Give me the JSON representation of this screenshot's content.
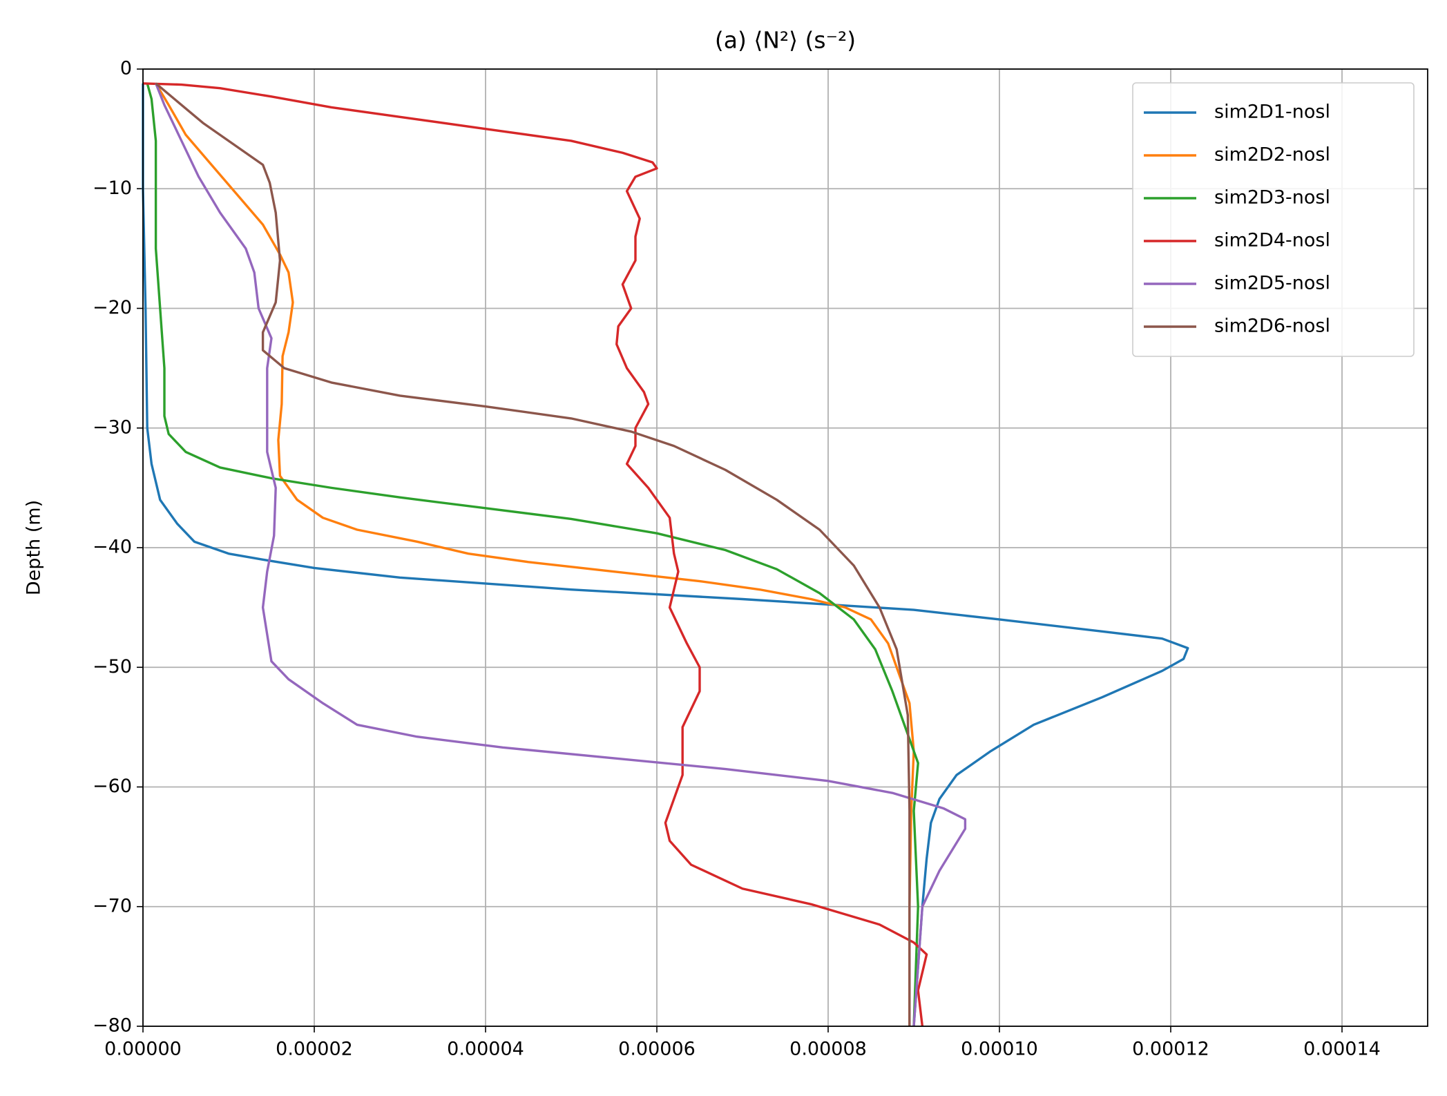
{
  "chart_data": {
    "type": "line",
    "title": "(a) ⟨N²⟩  (s⁻²)",
    "ylabel": "Depth (m)",
    "xlim": [
      0,
      0.00015
    ],
    "ylim": [
      -80,
      0
    ],
    "grid": true,
    "legend": "upper right",
    "xticks": [
      {
        "value": 0,
        "label": "0.00000"
      },
      {
        "value": 2e-05,
        "label": "0.00002"
      },
      {
        "value": 4e-05,
        "label": "0.00004"
      },
      {
        "value": 6e-05,
        "label": "0.00006"
      },
      {
        "value": 8e-05,
        "label": "0.00008"
      },
      {
        "value": 0.0001,
        "label": "0.00010"
      },
      {
        "value": 0.00012,
        "label": "0.00012"
      },
      {
        "value": 0.00014,
        "label": "0.00014"
      }
    ],
    "yticks": [
      {
        "value": -80,
        "label": "−80"
      },
      {
        "value": -70,
        "label": "−70"
      },
      {
        "value": -60,
        "label": "−60"
      },
      {
        "value": -50,
        "label": "−50"
      },
      {
        "value": -40,
        "label": "−40"
      },
      {
        "value": -30,
        "label": "−30"
      },
      {
        "value": -20,
        "label": "−20"
      },
      {
        "value": -10,
        "label": "−10"
      },
      0
    ],
    "series": [
      {
        "name": "sim2D1-nosl",
        "color": "#1f77b4",
        "x": [
          0,
          0,
          3e-07,
          5e-07,
          1e-06,
          2e-06,
          4e-06,
          6e-06,
          1e-05,
          1.4e-05,
          2e-05,
          3e-05,
          5e-05,
          7e-05,
          9e-05,
          0.0001,
          0.000112,
          0.000119,
          0.000122,
          0.0001215,
          0.000119,
          0.000112,
          0.000104,
          9.9e-05,
          9.5e-05,
          9.3e-05,
          9.2e-05,
          9.15e-05,
          9.1e-05,
          9e-05
        ],
        "values": [
          -1.2,
          -10,
          -20,
          -30,
          -33,
          -36,
          -38,
          -39.5,
          -40.5,
          -41,
          -41.7,
          -42.5,
          -43.5,
          -44.3,
          -45.2,
          -46,
          -47,
          -47.6,
          -48.4,
          -49.3,
          -50.3,
          -52.5,
          -54.8,
          -57,
          -59,
          -61,
          -63,
          -66,
          -70,
          -80
        ]
      },
      {
        "name": "sim2D2-nosl",
        "color": "#ff7f0e",
        "x": [
          1.5e-06,
          3e-06,
          5e-06,
          8e-06,
          1.1e-05,
          1.4e-05,
          1.6e-05,
          1.7e-05,
          1.75e-05,
          1.7e-05,
          1.63e-05,
          1.62e-05,
          1.58e-05,
          1.6e-05,
          1.8e-05,
          2.1e-05,
          2.5e-05,
          3.2e-05,
          3.8e-05,
          4.5e-05,
          5.5e-05,
          6.5e-05,
          7.2e-05,
          7.8e-05,
          8.2e-05,
          8.5e-05,
          8.7e-05,
          8.8e-05,
          8.95e-05,
          9e-05,
          8.97e-05,
          8.95e-05,
          8.95e-05
        ],
        "values": [
          -1.2,
          -3,
          -5.5,
          -8,
          -10.5,
          -13,
          -15.5,
          -17,
          -19.5,
          -22,
          -24,
          -28,
          -31,
          -34,
          -36,
          -37.5,
          -38.5,
          -39.5,
          -40.5,
          -41.2,
          -42,
          -42.8,
          -43.5,
          -44.3,
          -45,
          -46,
          -48,
          -50,
          -53,
          -57,
          -62,
          -70,
          -80
        ]
      },
      {
        "name": "sim2D3-nosl",
        "color": "#2ca02c",
        "x": [
          5e-07,
          1e-06,
          1.5e-06,
          1.5e-06,
          2e-06,
          2.5e-06,
          2.5e-06,
          3e-06,
          5e-06,
          9e-06,
          1.5e-05,
          2.2e-05,
          3e-05,
          4e-05,
          5e-05,
          6e-05,
          6.8e-05,
          7.4e-05,
          7.9e-05,
          8.3e-05,
          8.55e-05,
          8.75e-05,
          8.9e-05,
          9.05e-05,
          9e-05,
          9.05e-05,
          9e-05
        ],
        "values": [
          -1.2,
          -2.5,
          -6,
          -15,
          -20,
          -25,
          -29,
          -30.5,
          -32,
          -33.3,
          -34.2,
          -35,
          -35.8,
          -36.7,
          -37.6,
          -38.8,
          -40.2,
          -41.8,
          -43.8,
          -46,
          -48.5,
          -52,
          -55,
          -58,
          -62,
          -70,
          -80
        ]
      },
      {
        "name": "sim2D4-nosl",
        "color": "#d62728",
        "x": [
          0,
          4.5e-06,
          9e-06,
          1.5e-05,
          2.2e-05,
          3e-05,
          4e-05,
          5e-05,
          5.6e-05,
          5.95e-05,
          6e-05,
          5.75e-05,
          5.65e-05,
          5.8e-05,
          5.75e-05,
          5.75e-05,
          5.6e-05,
          5.7e-05,
          5.55e-05,
          5.53e-05,
          5.65e-05,
          5.85e-05,
          5.9e-05,
          5.75e-05,
          5.75e-05,
          5.65e-05,
          5.9e-05,
          6.15e-05,
          6.2e-05,
          6.25e-05,
          6.15e-05,
          6.35e-05,
          6.5e-05,
          6.5e-05,
          6.3e-05,
          6.3e-05,
          6.2e-05,
          6.1e-05,
          6.15e-05,
          6.4e-05,
          7e-05,
          7.8e-05,
          8.6e-05,
          9e-05,
          9.15e-05,
          9.05e-05,
          9.1e-05
        ],
        "values": [
          -1.2,
          -1.3,
          -1.6,
          -2.3,
          -3.2,
          -4,
          -5,
          -6,
          -7,
          -7.8,
          -8.3,
          -9,
          -10.2,
          -12.5,
          -14,
          -16,
          -18,
          -20,
          -21.5,
          -23,
          -25,
          -27,
          -28,
          -30,
          -31.5,
          -33,
          -35,
          -37.5,
          -40.5,
          -42,
          -45,
          -48,
          -50,
          -52,
          -55,
          -59,
          -61,
          -63,
          -64.5,
          -66.5,
          -68.5,
          -69.8,
          -71.5,
          -73,
          -74,
          -77,
          -80
        ]
      },
      {
        "name": "sim2D5-nosl",
        "color": "#9467bd",
        "x": [
          1.5e-06,
          2.5e-06,
          4.5e-06,
          6.5e-06,
          9e-06,
          1.2e-05,
          1.3e-05,
          1.35e-05,
          1.5e-05,
          1.45e-05,
          1.45e-05,
          1.45e-05,
          1.55e-05,
          1.53e-05,
          1.45e-05,
          1.4e-05,
          1.5e-05,
          1.7e-05,
          2.1e-05,
          2.5e-05,
          3.2e-05,
          4.2e-05,
          5.5e-05,
          6.8e-05,
          8e-05,
          8.75e-05,
          9.35e-05,
          9.6e-05,
          9.6e-05,
          9.3e-05,
          9.1e-05,
          9e-05
        ],
        "values": [
          -1.2,
          -3,
          -6,
          -9,
          -12,
          -15,
          -17,
          -20,
          -22.5,
          -25,
          -29,
          -32,
          -35,
          -39,
          -42,
          -45,
          -49.5,
          -51,
          -53,
          -54.8,
          -55.8,
          -56.7,
          -57.6,
          -58.5,
          -59.5,
          -60.5,
          -61.8,
          -62.7,
          -63.5,
          -67,
          -70,
          -80
        ]
      },
      {
        "name": "sim2D6-nosl",
        "color": "#8c564b",
        "x": [
          1.5e-06,
          4e-06,
          7e-06,
          1.1e-05,
          1.4e-05,
          1.48e-05,
          1.55e-05,
          1.6e-05,
          1.55e-05,
          1.4e-05,
          1.4e-05,
          1.65e-05,
          2.2e-05,
          3e-05,
          4e-05,
          5e-05,
          5.7e-05,
          6.2e-05,
          6.8e-05,
          7.4e-05,
          7.9e-05,
          8.3e-05,
          8.6e-05,
          8.8e-05,
          8.93e-05,
          8.95e-05,
          8.95e-05
        ],
        "values": [
          -1.2,
          -2.7,
          -4.5,
          -6.5,
          -8,
          -9.5,
          -12,
          -16,
          -19.5,
          -22,
          -23.5,
          -25,
          -26.2,
          -27.3,
          -28.2,
          -29.2,
          -30.3,
          -31.5,
          -33.5,
          -36,
          -38.5,
          -41.5,
          -45,
          -48.5,
          -54,
          -62,
          -80
        ]
      }
    ]
  }
}
